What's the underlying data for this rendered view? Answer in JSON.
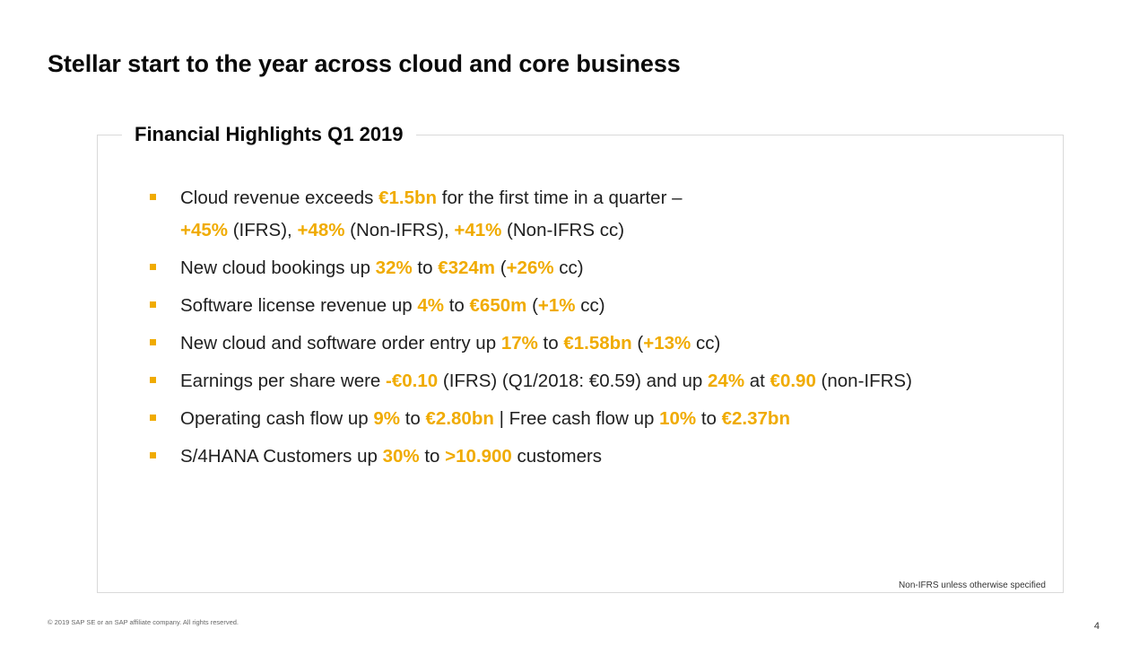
{
  "slide": {
    "title": "Stellar start to the year across cloud and core business",
    "panel_title": "Financial Highlights Q1 2019",
    "accent_color": "#f0ab00",
    "bullet_icon": "square-bullet-icon",
    "bullets": [
      {
        "lines": [
          {
            "t0": "Cloud revenue exceeds ",
            "h1": "€1.5bn",
            "t2": " for the first time in a quarter –"
          },
          {
            "h0": "+45%",
            "t1": " (IFRS), ",
            "h2": "+48%",
            "t3": " (Non-IFRS), ",
            "h4": "+41%",
            "t5": " (Non-IFRS cc)"
          }
        ]
      },
      {
        "t0": "New cloud bookings up ",
        "h1": "32%",
        "t2": " to ",
        "h3": "€324m",
        "t4": " (",
        "h5": "+26%",
        "t6": " cc)"
      },
      {
        "t0": "Software license revenue up ",
        "h1": "4%",
        "t2": " to ",
        "h3": "€650m",
        "t4": " (",
        "h5": "+1%",
        "t6": " cc)"
      },
      {
        "t0": "New cloud and software order entry up ",
        "h1": "17%",
        "t2": " to ",
        "h3": "€1.58bn",
        "t4": " (",
        "h5": "+13%",
        "t6": " cc)"
      },
      {
        "t0": "Earnings per share were ",
        "h1": "-€0.10",
        "t2": " (IFRS) (Q1/2018: €0.59) and up ",
        "h3": "24%",
        "t4": " at ",
        "h5": "€0.90",
        "t6": " (non-IFRS)"
      },
      {
        "t0": "Operating cash flow up ",
        "h1": "9%",
        "t2": " to ",
        "h3": "€2.80bn",
        "t4": " | Free cash flow up ",
        "h5": "10%",
        "t6": " to ",
        "h7": "€2.37bn"
      },
      {
        "t0": "S/4HANA Customers up ",
        "h1": "30%",
        "t2": " to ",
        "h3": ">10.900",
        "t4": " customers"
      }
    ],
    "footnote": "Non-IFRS unless otherwise specified",
    "copyright": "© 2019 SAP SE or an SAP affiliate company. All rights reserved.",
    "page_number": "4"
  }
}
